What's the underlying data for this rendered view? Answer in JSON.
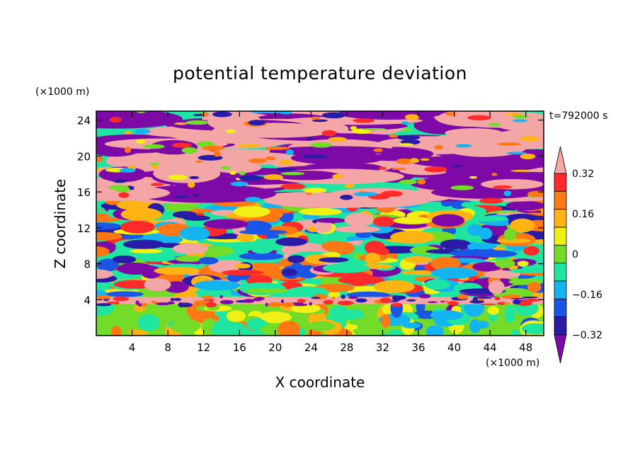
{
  "chart_data": {
    "type": "heatmap",
    "title": "potential temperature deviation",
    "xlabel": "X coordinate",
    "ylabel": "Z coordinate",
    "x_unit": "(×1000 m)",
    "y_unit": "(×1000 m)",
    "time_label": "t=792000 s",
    "xlim": [
      0,
      50
    ],
    "ylim": [
      0,
      25
    ],
    "x_ticks": [
      4,
      8,
      12,
      16,
      20,
      24,
      28,
      32,
      36,
      40,
      44,
      48
    ],
    "y_ticks": [
      4,
      8,
      12,
      16,
      20,
      24
    ],
    "colorbar": {
      "levels": [
        -0.4,
        -0.32,
        -0.24,
        -0.16,
        -0.08,
        0,
        0.08,
        0.16,
        0.24,
        0.32,
        0.4
      ],
      "labeled_levels": [
        "0.32",
        "0.16",
        "0",
        "−0.16",
        "−0.32"
      ],
      "labeled_values": [
        0.32,
        0.16,
        0,
        -0.16,
        -0.32
      ],
      "colors": [
        "#7d0aa6",
        "#2a1aa8",
        "#1a55e6",
        "#14b4f0",
        "#1ee6a0",
        "#72dc28",
        "#f0f014",
        "#ffb414",
        "#ff7814",
        "#ff2a2a",
        "#f4a6a6"
      ],
      "extend": "both"
    },
    "bands": [
      {
        "z_min": 20,
        "z_max": 25,
        "dominant": [
          "#7d0aa6",
          "#f4a6a6"
        ]
      },
      {
        "z_min": 15,
        "z_max": 20,
        "dominant": [
          "#f4a6a6",
          "#7d0aa6"
        ]
      },
      {
        "z_min": 5,
        "z_max": 15,
        "dominant": [
          "#ff7814",
          "#1a55e6",
          "#72dc28",
          "#f4a6a6",
          "#2a1aa8"
        ]
      },
      {
        "z_min": 3.5,
        "z_max": 4.5,
        "dominant": [
          "#f4a6a6",
          "#ff2a2a"
        ]
      },
      {
        "z_min": 0,
        "z_max": 3.5,
        "dominant": [
          "#72dc28",
          "#f0f014",
          "#14b4f0"
        ]
      }
    ]
  }
}
